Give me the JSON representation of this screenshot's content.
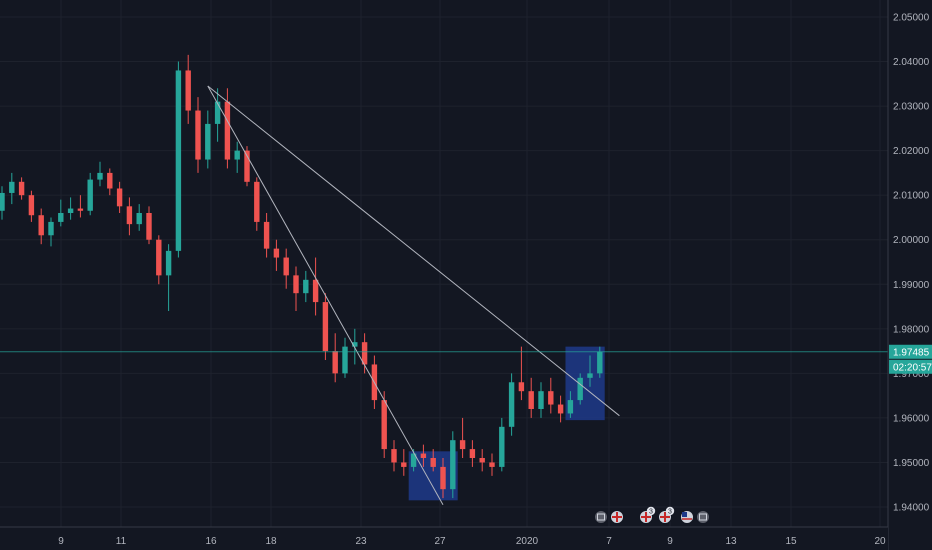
{
  "chart_data": {
    "type": "candlestick",
    "title": "",
    "xlabel": "",
    "ylabel": "",
    "ylim": [
      1.934,
      2.054
    ],
    "grid": true,
    "colors": {
      "background": "#131722",
      "grid": "#1e222d",
      "up": "#26a69a",
      "down": "#ef5350",
      "trendline": "#b2b5be",
      "highlight": "#1f3a8a",
      "price_line": "#26a69a",
      "axis_text": "#b2b5be"
    },
    "y_ticks": [
      "2.05000",
      "2.04000",
      "2.03000",
      "2.02000",
      "2.01000",
      "2.00000",
      "1.99000",
      "1.98000",
      "1.97000",
      "1.96000",
      "1.95000",
      "1.94000"
    ],
    "x_ticks": [
      "9",
      "11",
      "16",
      "18",
      "23",
      "27",
      "2020",
      "7",
      "9",
      "13",
      "15",
      "20"
    ],
    "last_price": "1.97485",
    "countdown": "02:20:57",
    "candles": [
      [
        2.0065,
        2.012,
        2.0045,
        2.0105
      ],
      [
        2.0105,
        2.015,
        2.008,
        2.013
      ],
      [
        2.013,
        2.014,
        2.009,
        2.01
      ],
      [
        2.01,
        2.011,
        2.004,
        2.0055
      ],
      [
        2.0055,
        2.007,
        1.999,
        2.001
      ],
      [
        2.001,
        2.005,
        1.9985,
        2.004
      ],
      [
        2.004,
        2.009,
        2.003,
        2.006
      ],
      [
        2.006,
        2.0095,
        2.0045,
        2.007
      ],
      [
        2.007,
        2.01,
        2.005,
        2.0065
      ],
      [
        2.0065,
        2.015,
        2.0055,
        2.0135
      ],
      [
        2.0135,
        2.0175,
        2.012,
        2.015
      ],
      [
        2.015,
        2.016,
        2.01,
        2.0115
      ],
      [
        2.0115,
        2.013,
        2.006,
        2.0075
      ],
      [
        2.0075,
        2.0095,
        2.001,
        2.0035
      ],
      [
        2.0035,
        2.008,
        2.002,
        2.006
      ],
      [
        2.006,
        2.0075,
        1.999,
        2.0
      ],
      [
        2.0,
        2.001,
        1.99,
        1.992
      ],
      [
        1.992,
        1.999,
        1.984,
        1.9975
      ],
      [
        1.9975,
        2.04,
        1.996,
        2.038
      ],
      [
        2.038,
        2.0415,
        2.026,
        2.029
      ],
      [
        2.029,
        2.032,
        2.015,
        2.018
      ],
      [
        2.018,
        2.029,
        2.016,
        2.026
      ],
      [
        2.026,
        2.034,
        2.022,
        2.031
      ],
      [
        2.031,
        2.034,
        2.016,
        2.018
      ],
      [
        2.018,
        2.022,
        2.015,
        2.02
      ],
      [
        2.02,
        2.021,
        2.012,
        2.013
      ],
      [
        2.013,
        2.014,
        2.002,
        2.004
      ],
      [
        2.004,
        2.006,
        1.996,
        1.998
      ],
      [
        1.998,
        2.0,
        1.993,
        1.996
      ],
      [
        1.996,
        1.998,
        1.989,
        1.992
      ],
      [
        1.992,
        1.994,
        1.984,
        1.988
      ],
      [
        1.988,
        1.993,
        1.986,
        1.991
      ],
      [
        1.991,
        1.996,
        1.983,
        1.986
      ],
      [
        1.986,
        1.988,
        1.973,
        1.975
      ],
      [
        1.975,
        1.979,
        1.968,
        1.97
      ],
      [
        1.97,
        1.978,
        1.969,
        1.976
      ],
      [
        1.976,
        1.98,
        1.972,
        1.977
      ],
      [
        1.977,
        1.979,
        1.97,
        1.972
      ],
      [
        1.972,
        1.974,
        1.962,
        1.964
      ],
      [
        1.964,
        1.966,
        1.951,
        1.953
      ],
      [
        1.953,
        1.955,
        1.948,
        1.95
      ],
      [
        1.95,
        1.953,
        1.947,
        1.949
      ],
      [
        1.949,
        1.953,
        1.948,
        1.952
      ],
      [
        1.952,
        1.954,
        1.949,
        1.951
      ],
      [
        1.951,
        1.953,
        1.948,
        1.949
      ],
      [
        1.949,
        1.951,
        1.942,
        1.944
      ],
      [
        1.944,
        1.957,
        1.942,
        1.955
      ],
      [
        1.955,
        1.96,
        1.951,
        1.953
      ],
      [
        1.953,
        1.955,
        1.949,
        1.951
      ],
      [
        1.951,
        1.953,
        1.948,
        1.95
      ],
      [
        1.95,
        1.952,
        1.947,
        1.949
      ],
      [
        1.949,
        1.96,
        1.948,
        1.958
      ],
      [
        1.958,
        1.97,
        1.956,
        1.968
      ],
      [
        1.968,
        1.976,
        1.964,
        1.966
      ],
      [
        1.966,
        1.969,
        1.96,
        1.962
      ],
      [
        1.962,
        1.968,
        1.96,
        1.966
      ],
      [
        1.966,
        1.969,
        1.961,
        1.963
      ],
      [
        1.963,
        1.965,
        1.959,
        1.961
      ],
      [
        1.961,
        1.966,
        1.96,
        1.964
      ],
      [
        1.964,
        1.97,
        1.963,
        1.969
      ],
      [
        1.969,
        1.974,
        1.967,
        1.97
      ],
      [
        1.97,
        1.976,
        1.969,
        1.97485
      ]
    ],
    "trendlines": [
      {
        "from": {
          "index": 21,
          "price": 2.0345
        },
        "to": {
          "index": 45,
          "price": 1.9405
        }
      },
      {
        "from": {
          "index": 21,
          "price": 2.0345
        },
        "to": {
          "index": 63,
          "price": 1.9605
        }
      }
    ],
    "highlight_boxes": [
      {
        "from_index": 41.5,
        "to_index": 46.5,
        "top": 1.9525,
        "bottom": 1.9415
      },
      {
        "from_index": 57.5,
        "to_index": 61.5,
        "top": 1.976,
        "bottom": 1.9595
      }
    ],
    "event_markers": [
      {
        "icon": "calendar-event-icon",
        "label": ""
      },
      {
        "icon": "uk-flag-icon",
        "label": ""
      },
      {
        "icon": "uk-flag-icon",
        "label": "3"
      },
      {
        "icon": "uk-flag-icon",
        "label": "3"
      },
      {
        "icon": "us-flag-icon",
        "label": ""
      },
      {
        "icon": "calendar-event-icon",
        "label": ""
      }
    ]
  }
}
